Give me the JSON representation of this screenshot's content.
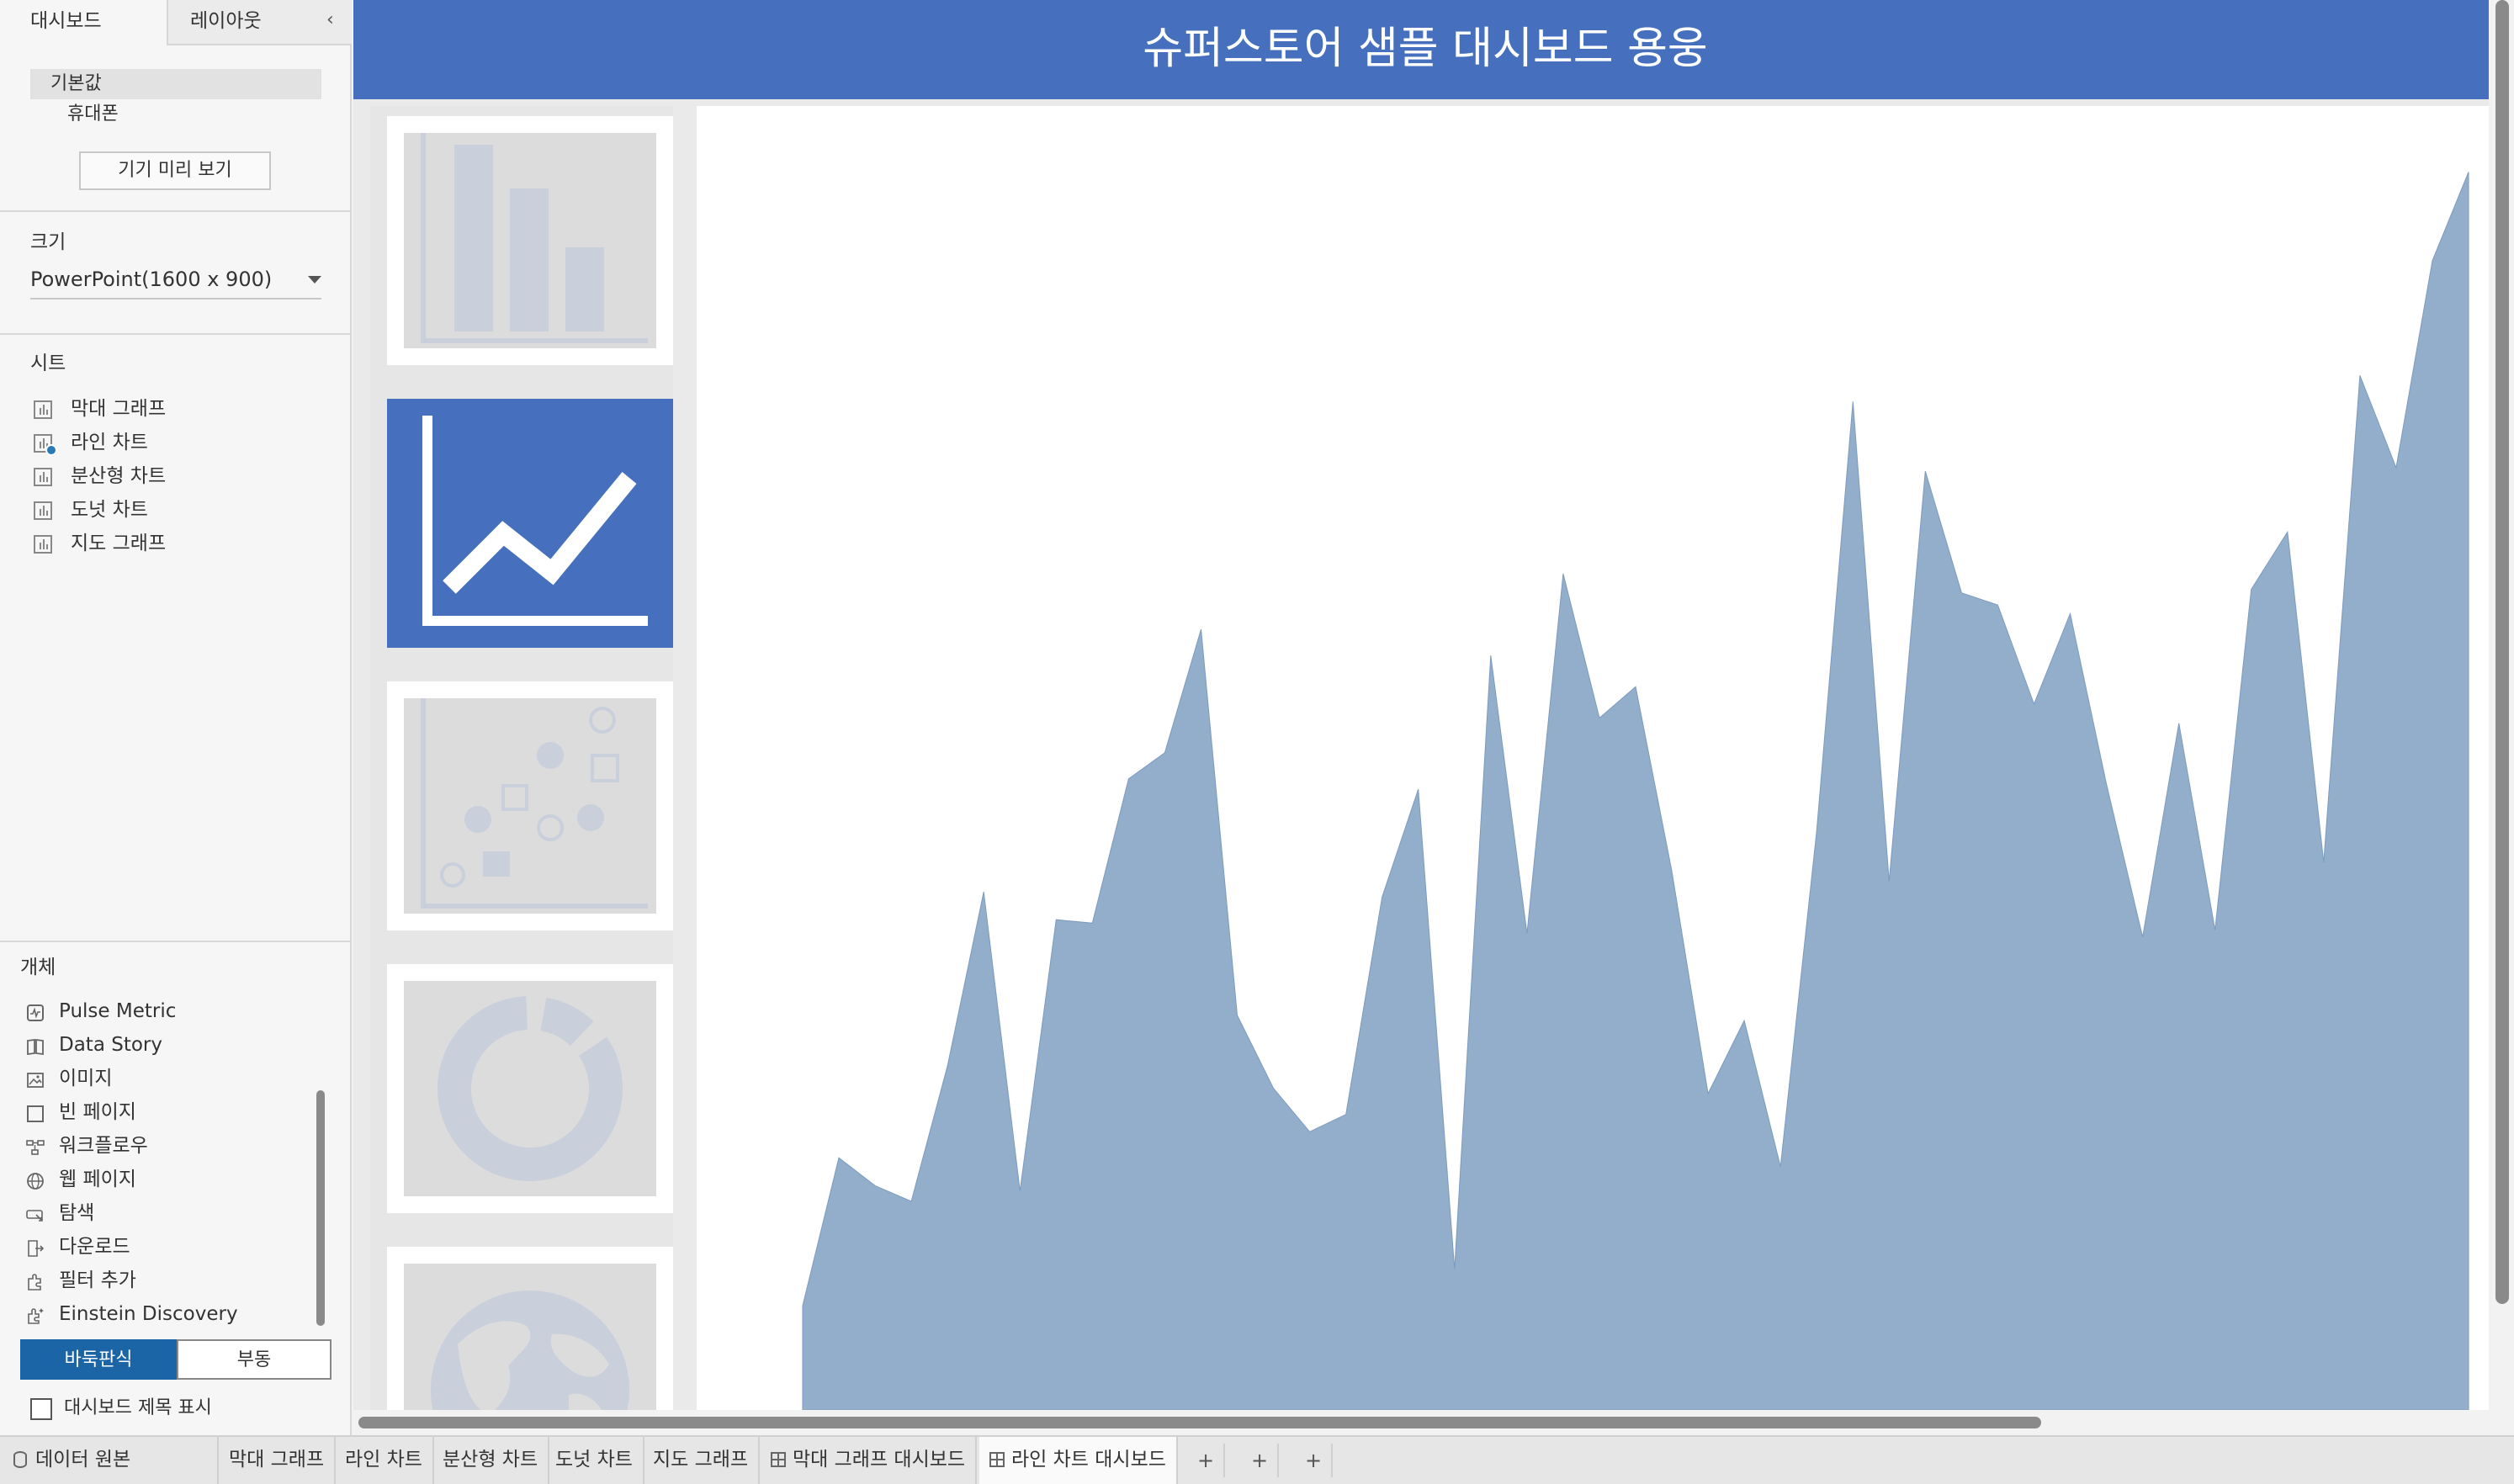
{
  "left_panel": {
    "tabs": {
      "dashboard": "대시보드",
      "layout": "레이아웃"
    },
    "collapse_glyph": "‹",
    "devices": {
      "default": "기본값",
      "phone": "휴대폰"
    },
    "device_preview_button": "기기 미리 보기",
    "size": {
      "title": "크기",
      "value": "PowerPoint(1600 x 900)"
    },
    "sheets": {
      "title": "시트",
      "items": [
        {
          "label": "막대 그래프"
        },
        {
          "label": "라인 차트"
        },
        {
          "label": "분산형 차트"
        },
        {
          "label": "도넛 차트"
        },
        {
          "label": "지도 그래프"
        }
      ]
    },
    "objects": {
      "title": "개체",
      "items": [
        {
          "label": "Pulse Metric",
          "icon": "pulse-metric-icon"
        },
        {
          "label": "Data Story",
          "icon": "book-icon"
        },
        {
          "label": "이미지",
          "icon": "image-icon"
        },
        {
          "label": "빈 페이지",
          "icon": "blank-icon"
        },
        {
          "label": "워크플로우",
          "icon": "workflow-icon"
        },
        {
          "label": "웹 페이지",
          "icon": "globe-icon"
        },
        {
          "label": "탐색",
          "icon": "navigation-icon"
        },
        {
          "label": "다운로드",
          "icon": "download-icon"
        },
        {
          "label": "필터 추가",
          "icon": "puzzle-icon"
        },
        {
          "label": "Einstein Discovery",
          "icon": "einstein-icon"
        }
      ]
    },
    "layout_mode": {
      "tiled": "바둑판식",
      "floating": "부동"
    },
    "show_title": "대시보드 제목 표시"
  },
  "dashboard": {
    "title": "슈퍼스토어 샘플 대시보드 용웅",
    "colors": {
      "title_bg": "#4670be",
      "area_fill": "#93aecb",
      "area_stroke": "#7d9ac0",
      "nav_active": "#4670be"
    },
    "nav_buttons": [
      {
        "icon": "bar-chart-icon",
        "active": false
      },
      {
        "icon": "line-chart-icon",
        "active": true
      },
      {
        "icon": "scatter-chart-icon",
        "active": false
      },
      {
        "icon": "donut-chart-icon",
        "active": false
      },
      {
        "icon": "map-globe-icon",
        "active": false
      }
    ]
  },
  "chart_data": {
    "type": "area",
    "values": [
      6.0,
      14.5,
      12.9,
      12.0,
      19.8,
      29.8,
      12.6,
      28.2,
      28.0,
      36.3,
      37.8,
      44.9,
      22.7,
      18.5,
      16.0,
      17.0,
      29.5,
      35.7,
      8.1,
      43.4,
      27.4,
      48.1,
      39.8,
      41.6,
      31.0,
      18.2,
      22.4,
      14.0,
      33.3,
      58.0,
      30.4,
      54.0,
      47.0,
      46.3,
      40.6,
      45.8,
      36.0,
      27.2,
      39.5,
      27.6,
      47.2,
      50.5,
      31.5,
      59.5,
      54.2,
      66.1,
      71.2
    ],
    "ylim": [
      0,
      75
    ]
  },
  "bottom_tabs": {
    "data_source": "데이터 원본",
    "sheets": [
      "막대 그래프",
      "라인 차트",
      "분산형 차트",
      "도넛 차트",
      "지도 그래프"
    ],
    "dashboards": [
      "막대 그래프 대시보드",
      "라인 차트 대시보드"
    ],
    "active": "라인 차트 대시보드",
    "new_sheet_glyph": "+",
    "new_dashboard_glyph": "+",
    "new_story_glyph": "+"
  }
}
